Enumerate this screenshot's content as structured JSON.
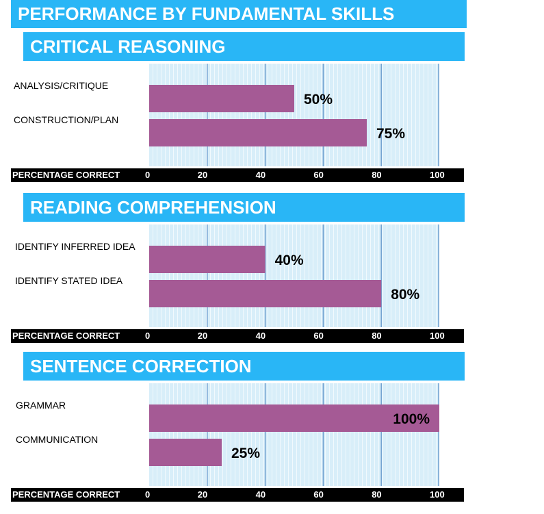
{
  "title": "PERFORMANCE BY FUNDAMENTAL SKILLS",
  "axis_title": "PERCENTAGE CORRECT",
  "colors": {
    "header": "#29b6f6",
    "bar": "#a55a95",
    "plot_bg": "#d8eef9",
    "gridline": "#6f9fcf"
  },
  "chart_data": [
    {
      "type": "bar",
      "orientation": "horizontal",
      "title": "CRITICAL REASONING",
      "xlabel": "PERCENTAGE CORRECT",
      "xlim": [
        0,
        100
      ],
      "ticks": [
        "0",
        "20",
        "40",
        "60",
        "80",
        "100"
      ],
      "categories": [
        "ANALYSIS/CRITIQUE",
        "CONSTRUCTION/PLAN"
      ],
      "values": [
        50,
        75
      ],
      "data_labels": [
        "50%",
        "75%"
      ],
      "grid": true
    },
    {
      "type": "bar",
      "orientation": "horizontal",
      "title": "READING COMPREHENSION",
      "xlabel": "PERCENTAGE CORRECT",
      "xlim": [
        0,
        100
      ],
      "ticks": [
        "0",
        "20",
        "40",
        "60",
        "80",
        "100"
      ],
      "categories": [
        "IDENTIFY INFERRED IDEA",
        "IDENTIFY STATED IDEA"
      ],
      "values": [
        40,
        80
      ],
      "data_labels": [
        "40%",
        "80%"
      ],
      "grid": true
    },
    {
      "type": "bar",
      "orientation": "horizontal",
      "title": "SENTENCE CORRECTION",
      "xlabel": "PERCENTAGE CORRECT",
      "xlim": [
        0,
        100
      ],
      "ticks": [
        "0",
        "20",
        "40",
        "60",
        "80",
        "100"
      ],
      "categories": [
        "GRAMMAR",
        "COMMUNICATION"
      ],
      "values": [
        100,
        25
      ],
      "data_labels": [
        "100%",
        "25%"
      ],
      "grid": true
    }
  ]
}
